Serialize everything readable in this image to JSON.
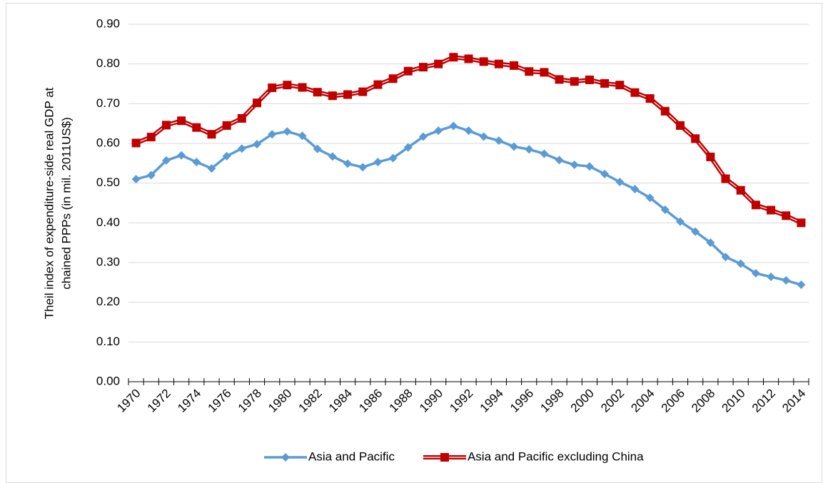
{
  "chart_data": {
    "type": "line",
    "y_label": [
      "Theil index of expenditure-side real GDP at",
      "chained PPPs (in mil. 2011US$)"
    ],
    "categories": [
      "1970",
      null,
      "1972",
      null,
      "1974",
      null,
      "1976",
      null,
      "1978",
      null,
      "1980",
      null,
      "1982",
      null,
      "1984",
      null,
      "1986",
      null,
      "1988",
      null,
      "1990",
      null,
      "1992",
      null,
      "1994",
      null,
      "1996",
      null,
      "1998",
      null,
      "2000",
      null,
      "2002",
      null,
      "2004",
      null,
      "2006",
      null,
      "2008",
      null,
      "2010",
      null,
      "2012",
      null,
      "2014"
    ],
    "series": [
      {
        "name": "Asia and Pacific",
        "color": "#5b9bd5",
        "marker": "diamond",
        "values": [
          0.51,
          0.52,
          0.557,
          0.57,
          0.553,
          0.537,
          0.568,
          0.587,
          0.598,
          0.623,
          0.63,
          0.619,
          0.586,
          0.567,
          0.549,
          0.54,
          0.553,
          0.563,
          0.59,
          0.617,
          0.632,
          0.644,
          0.632,
          0.617,
          0.607,
          0.592,
          0.585,
          0.574,
          0.558,
          0.546,
          0.542,
          0.523,
          0.503,
          0.485,
          0.463,
          0.433,
          0.403,
          0.378,
          0.35,
          0.314,
          0.297,
          0.273,
          0.264,
          0.255,
          0.244
        ]
      },
      {
        "name": "Asia and Pacific excluding China",
        "color": "#c00000",
        "marker": "square",
        "values": [
          0.601,
          0.616,
          0.646,
          0.657,
          0.64,
          0.623,
          0.645,
          0.663,
          0.702,
          0.74,
          0.747,
          0.741,
          0.729,
          0.72,
          0.723,
          0.73,
          0.748,
          0.763,
          0.782,
          0.792,
          0.8,
          0.817,
          0.813,
          0.806,
          0.8,
          0.796,
          0.781,
          0.779,
          0.761,
          0.756,
          0.76,
          0.751,
          0.747,
          0.728,
          0.713,
          0.681,
          0.645,
          0.612,
          0.566,
          0.511,
          0.482,
          0.445,
          0.432,
          0.418,
          0.4
        ]
      }
    ],
    "ylim": [
      0,
      0.9
    ],
    "yticks": [
      {
        "value": 0,
        "label": "0.00"
      },
      {
        "value": 0.1,
        "label": "0.10"
      },
      {
        "value": 0.2,
        "label": "0.20"
      },
      {
        "value": 0.3,
        "label": "0.30"
      },
      {
        "value": 0.4,
        "label": "0.40"
      },
      {
        "value": 0.5,
        "label": "0.50"
      },
      {
        "value": 0.6,
        "label": "0.60"
      },
      {
        "value": 0.7,
        "label": "0.70"
      },
      {
        "value": 0.8,
        "label": "0.80"
      },
      {
        "value": 0.9,
        "label": "0.90"
      }
    ],
    "grid": true,
    "legend": "bottom"
  }
}
